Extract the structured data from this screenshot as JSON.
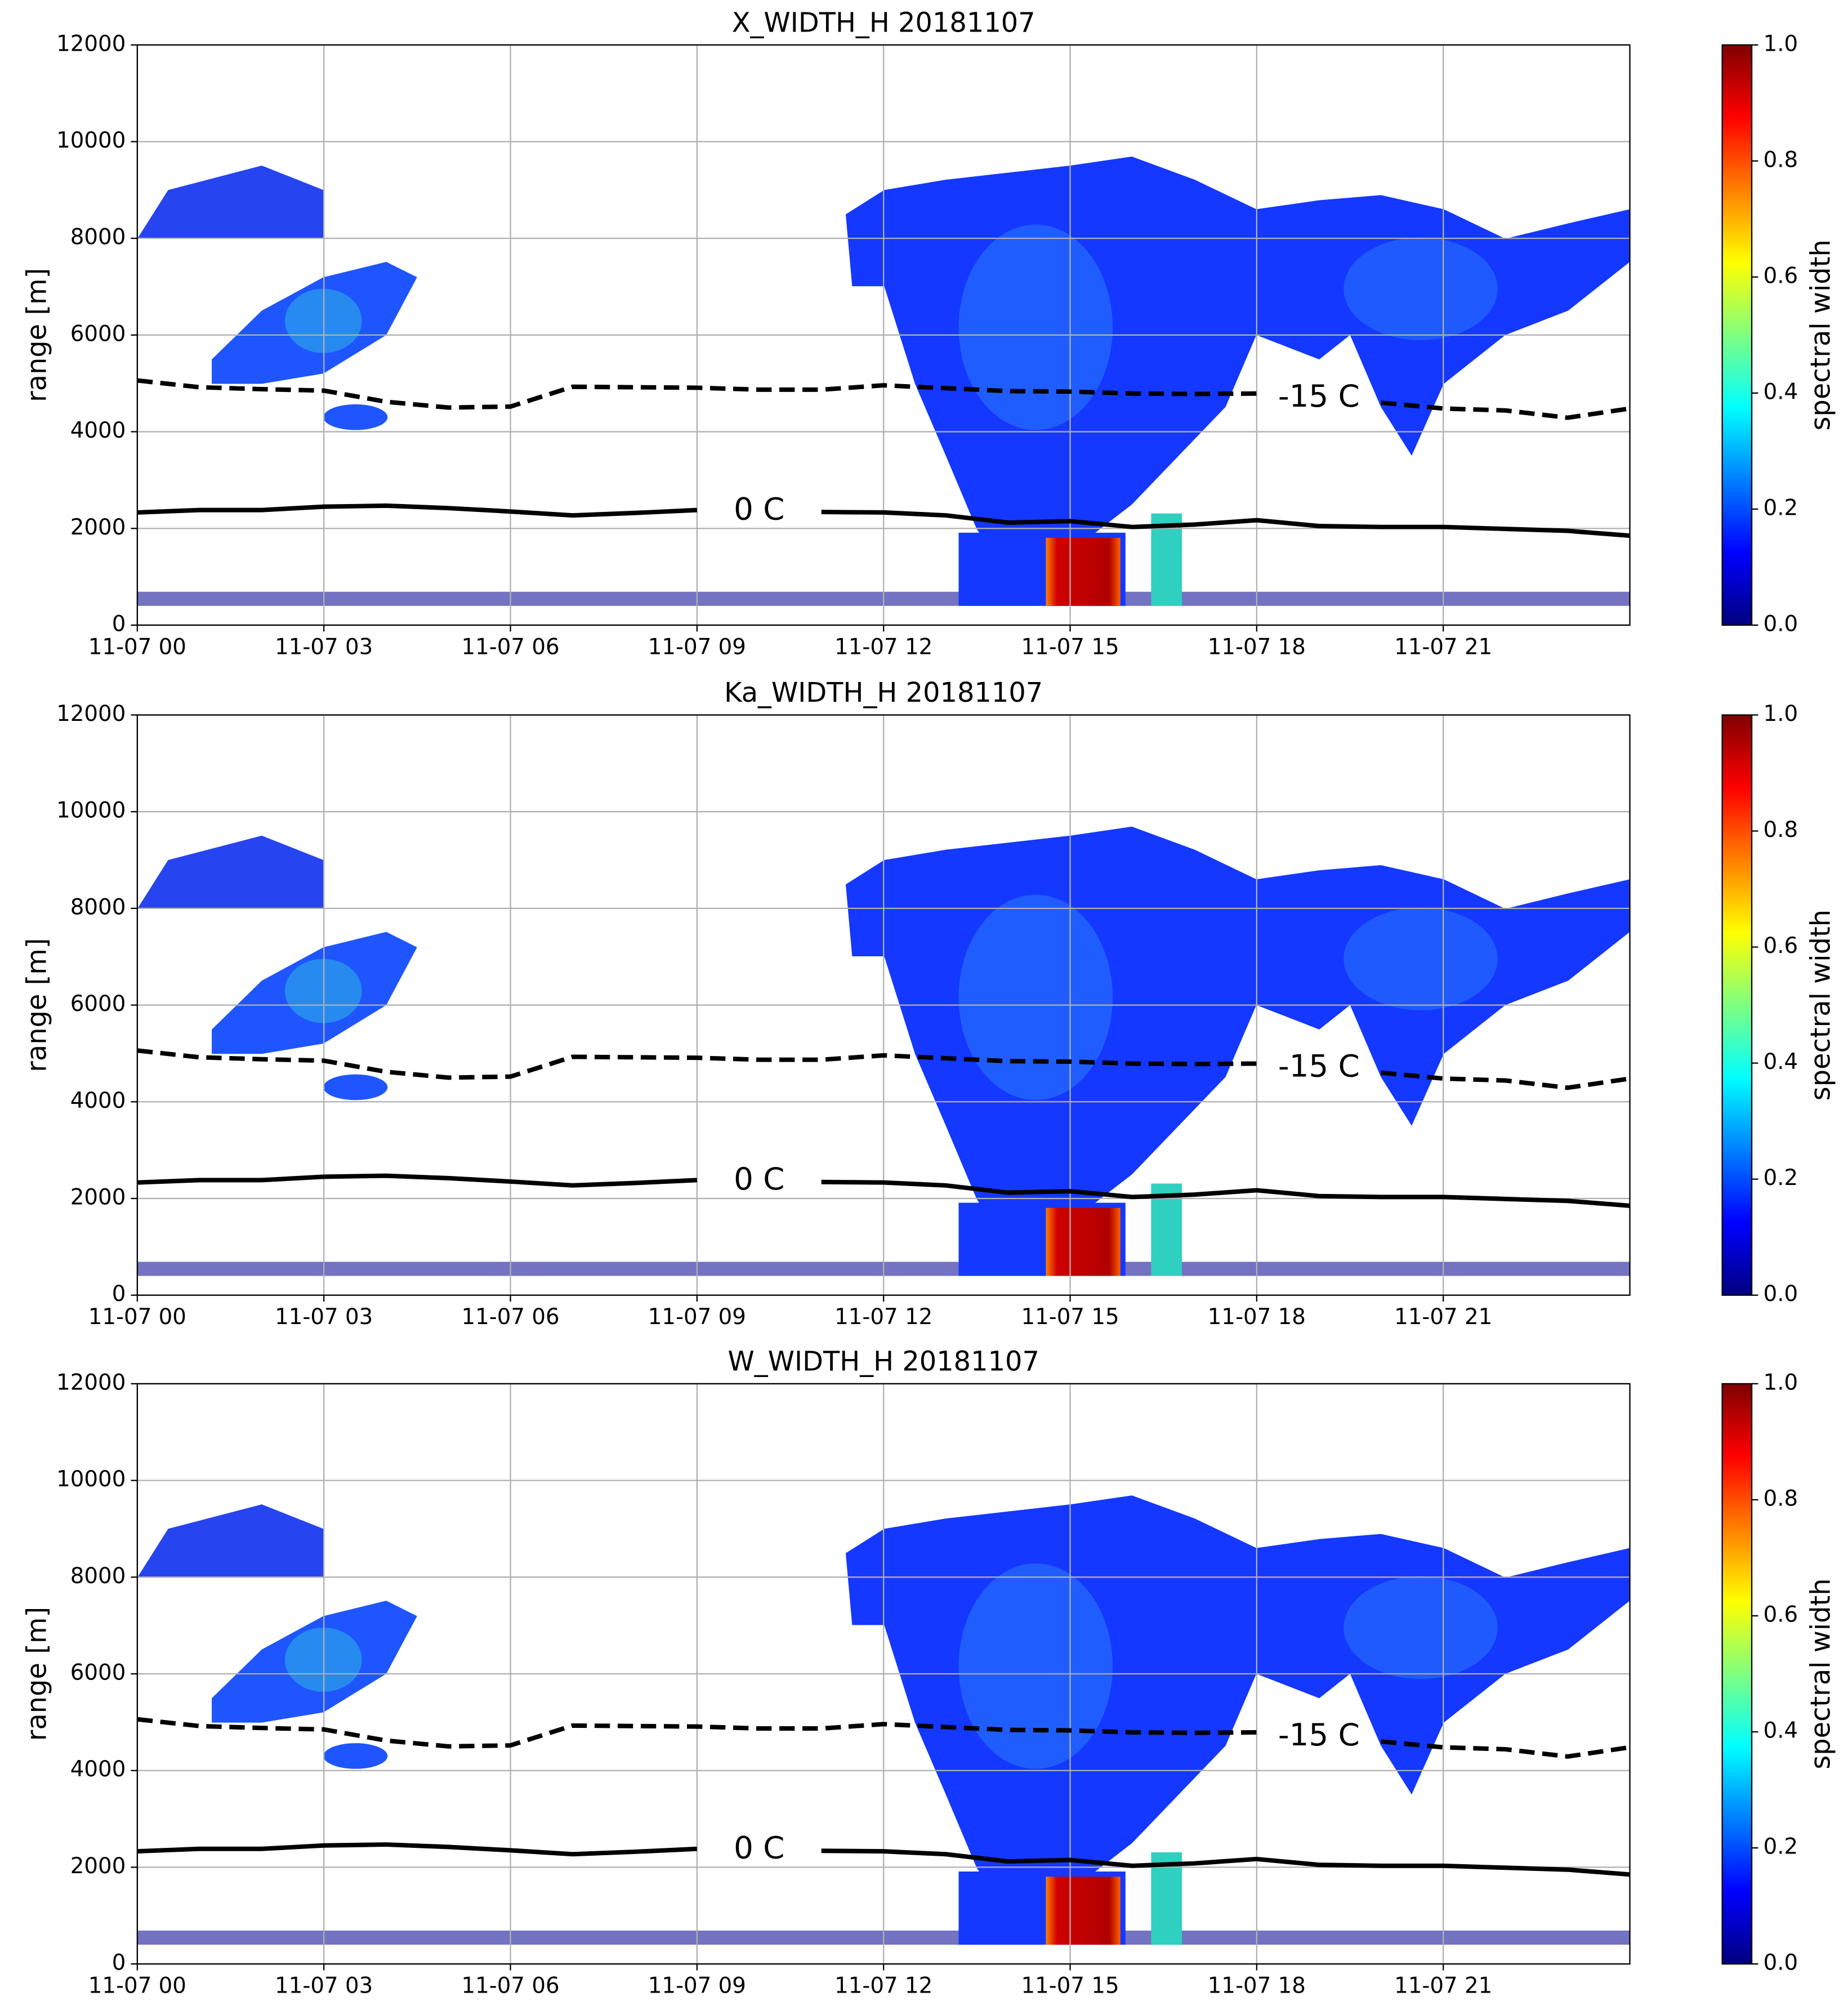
{
  "chart_data": [
    {
      "type": "heatmap",
      "title": "X_WIDTH_H 20181107",
      "ylabel": "range [m]",
      "xlim": [
        0,
        24
      ],
      "xticks": [
        {
          "value": 0,
          "label": "11-07 00"
        },
        {
          "value": 3,
          "label": "11-07 03"
        },
        {
          "value": 6,
          "label": "11-07 06"
        },
        {
          "value": 9,
          "label": "11-07 09"
        },
        {
          "value": 12,
          "label": "11-07 12"
        },
        {
          "value": 15,
          "label": "11-07 15"
        },
        {
          "value": 18,
          "label": "11-07 18"
        },
        {
          "value": 21,
          "label": "11-07 21"
        }
      ],
      "ylim": [
        0,
        12000
      ],
      "yticks": [
        0,
        2000,
        4000,
        6000,
        8000,
        10000,
        12000
      ],
      "grid": true,
      "x": [
        0,
        1,
        2,
        3,
        4,
        5,
        6,
        7,
        8,
        9,
        10,
        11,
        12,
        13,
        14,
        15,
        16,
        17,
        18,
        19,
        20,
        21,
        22,
        23,
        24
      ],
      "series": [
        {
          "name": "0 C",
          "color": "#000000",
          "style": "solid",
          "values": [
            2330,
            2380,
            2380,
            2450,
            2470,
            2420,
            2350,
            2270,
            2320,
            2380,
            null,
            2340,
            2330,
            2270,
            2120,
            2150,
            2030,
            2080,
            2170,
            2050,
            2030,
            2030,
            1990,
            1950,
            1850
          ]
        },
        {
          "name": "-15 C",
          "color": "#000000",
          "style": "dashed",
          "values": [
            5060,
            4920,
            4880,
            4850,
            4620,
            4500,
            4520,
            4930,
            4920,
            4910,
            4870,
            4870,
            4960,
            4900,
            4840,
            4830,
            4790,
            4780,
            4790,
            null,
            4600,
            4480,
            4440,
            4290,
            4480
          ]
        }
      ],
      "colorbar": {
        "label": "spectral width",
        "colormap": "jet",
        "lim": [
          0,
          1
        ],
        "ticks": [
          {
            "value": 0,
            "label": "0.0"
          },
          0.2,
          0.4,
          0.6,
          0.8,
          {
            "value": 1,
            "label": "1.0"
          }
        ]
      }
    },
    {
      "type": "heatmap",
      "title": "Ka_WIDTH_H 20181107",
      "ylabel": "range [m]",
      "xlim": [
        0,
        24
      ],
      "xticks": [
        {
          "value": 0,
          "label": "11-07 00"
        },
        {
          "value": 3,
          "label": "11-07 03"
        },
        {
          "value": 6,
          "label": "11-07 06"
        },
        {
          "value": 9,
          "label": "11-07 09"
        },
        {
          "value": 12,
          "label": "11-07 12"
        },
        {
          "value": 15,
          "label": "11-07 15"
        },
        {
          "value": 18,
          "label": "11-07 18"
        },
        {
          "value": 21,
          "label": "11-07 21"
        }
      ],
      "ylim": [
        0,
        12000
      ],
      "yticks": [
        0,
        2000,
        4000,
        6000,
        8000,
        10000,
        12000
      ],
      "grid": true,
      "x": [
        0,
        1,
        2,
        3,
        4,
        5,
        6,
        7,
        8,
        9,
        10,
        11,
        12,
        13,
        14,
        15,
        16,
        17,
        18,
        19,
        20,
        21,
        22,
        23,
        24
      ],
      "series": [
        {
          "name": "0 C",
          "color": "#000000",
          "style": "solid",
          "values": [
            2330,
            2380,
            2380,
            2450,
            2470,
            2420,
            2350,
            2270,
            2320,
            2380,
            null,
            2340,
            2330,
            2270,
            2120,
            2150,
            2030,
            2080,
            2170,
            2050,
            2030,
            2030,
            1990,
            1950,
            1850
          ]
        },
        {
          "name": "-15 C",
          "color": "#000000",
          "style": "dashed",
          "values": [
            5060,
            4920,
            4880,
            4850,
            4620,
            4500,
            4520,
            4930,
            4920,
            4910,
            4870,
            4870,
            4960,
            4900,
            4840,
            4830,
            4790,
            4780,
            4790,
            null,
            4600,
            4480,
            4440,
            4290,
            4480
          ]
        }
      ],
      "colorbar": {
        "label": "spectral width",
        "colormap": "jet",
        "lim": [
          0,
          1
        ],
        "ticks": [
          {
            "value": 0,
            "label": "0.0"
          },
          0.2,
          0.4,
          0.6,
          0.8,
          {
            "value": 1,
            "label": "1.0"
          }
        ]
      }
    },
    {
      "type": "heatmap",
      "title": "W_WIDTH_H 20181107",
      "ylabel": "range [m]",
      "xlim": [
        0,
        24
      ],
      "xticks": [
        {
          "value": 0,
          "label": "11-07 00"
        },
        {
          "value": 3,
          "label": "11-07 03"
        },
        {
          "value": 6,
          "label": "11-07 06"
        },
        {
          "value": 9,
          "label": "11-07 09"
        },
        {
          "value": 12,
          "label": "11-07 12"
        },
        {
          "value": 15,
          "label": "11-07 15"
        },
        {
          "value": 18,
          "label": "11-07 18"
        },
        {
          "value": 21,
          "label": "11-07 21"
        }
      ],
      "ylim": [
        0,
        12000
      ],
      "yticks": [
        0,
        2000,
        4000,
        6000,
        8000,
        10000,
        12000
      ],
      "grid": true,
      "x": [
        0,
        1,
        2,
        3,
        4,
        5,
        6,
        7,
        8,
        9,
        10,
        11,
        12,
        13,
        14,
        15,
        16,
        17,
        18,
        19,
        20,
        21,
        22,
        23,
        24
      ],
      "series": [
        {
          "name": "0 C",
          "color": "#000000",
          "style": "solid",
          "values": [
            2330,
            2380,
            2380,
            2450,
            2470,
            2420,
            2350,
            2270,
            2320,
            2380,
            null,
            2340,
            2330,
            2270,
            2120,
            2150,
            2030,
            2080,
            2170,
            2050,
            2030,
            2030,
            1990,
            1950,
            1850
          ]
        },
        {
          "name": "-15 C",
          "color": "#000000",
          "style": "dashed",
          "values": [
            5060,
            4920,
            4880,
            4850,
            4620,
            4500,
            4520,
            4930,
            4920,
            4910,
            4870,
            4870,
            4960,
            4900,
            4840,
            4830,
            4790,
            4780,
            4790,
            null,
            4600,
            4480,
            4440,
            4290,
            4480
          ]
        }
      ],
      "colorbar": {
        "label": "spectral width",
        "colormap": "jet",
        "lim": [
          0,
          1
        ],
        "ticks": [
          {
            "value": 0,
            "label": "0.0"
          },
          0.2,
          0.4,
          0.6,
          0.8,
          {
            "value": 1,
            "label": "1.0"
          }
        ]
      }
    }
  ]
}
